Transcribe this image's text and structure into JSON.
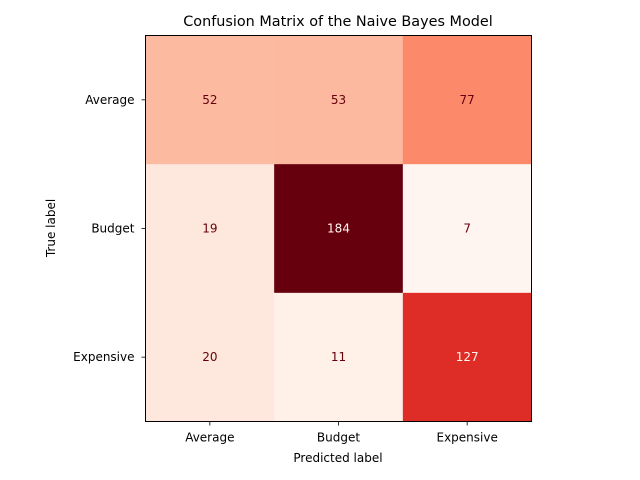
{
  "chart_data": {
    "type": "heatmap",
    "title": "Confusion Matrix of the Naive Bayes Model",
    "xlabel": "Predicted label",
    "ylabel": "True label",
    "x_categories": [
      "Average",
      "Budget",
      "Expensive"
    ],
    "y_categories": [
      "Average",
      "Budget",
      "Expensive"
    ],
    "values": [
      [
        52,
        53,
        77
      ],
      [
        19,
        184,
        7
      ],
      [
        20,
        11,
        127
      ]
    ],
    "colormap": "Reds",
    "vmin": 7,
    "vmax": 184,
    "colorbar": false,
    "cell_colors": [
      [
        "#fcbba1",
        "#fcb99f",
        "#fc8a6a"
      ],
      [
        "#fee8dd",
        "#67000d",
        "#fff5f0"
      ],
      [
        "#fee7dc",
        "#fff0e8",
        "#de2d26"
      ]
    ],
    "text_colors": {
      "light_bg": "#67000d",
      "dark_bg": "#fff5f0"
    },
    "grid": false
  }
}
